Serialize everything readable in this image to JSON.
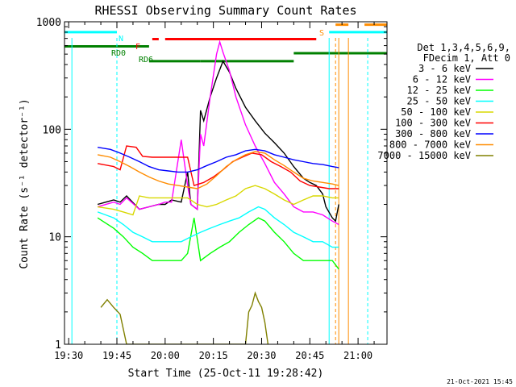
{
  "chart_data": {
    "type": "line",
    "title": "RHESSI Observing Summary Count Rates",
    "xlabel": "Start Time (25-Oct-11 19:28:42)",
    "ylabel": "Count Rate (s⁻¹ detector⁻¹)",
    "xlim": [
      "19:28:42",
      "21:09:00"
    ],
    "ylim": [
      1,
      1000
    ],
    "yscale": "log",
    "x_ticks": [
      "19:30",
      "19:45",
      "20:00",
      "20:15",
      "20:30",
      "20:45",
      "21:00"
    ],
    "y_ticks": [
      "1",
      "10",
      "100",
      "1000"
    ],
    "timestamp": "21-Oct-2021 15:45",
    "legend_header": [
      "Det 1,3,4,5,6,9,",
      "FDecim 1, Att 0"
    ],
    "legend_position": "right",
    "series": [
      {
        "name": "3 - 6 keV",
        "color": "#000000",
        "points": [
          [
            "19:39",
            20
          ],
          [
            "19:44",
            22
          ],
          [
            "19:46",
            21
          ],
          [
            "19:48",
            24
          ],
          [
            "19:52",
            18
          ],
          [
            "19:55",
            19
          ],
          [
            "19:58",
            20
          ],
          [
            "20:00",
            20
          ],
          [
            "20:02",
            22
          ],
          [
            "20:05",
            21
          ],
          [
            "20:07",
            40
          ],
          [
            "20:08",
            20
          ],
          [
            "20:10",
            18
          ],
          [
            "20:11",
            150
          ],
          [
            "20:12",
            120
          ],
          [
            "20:14",
            200
          ],
          [
            "20:16",
            300
          ],
          [
            "20:18",
            430
          ],
          [
            "20:20",
            340
          ],
          [
            "20:22",
            240
          ],
          [
            "20:25",
            160
          ],
          [
            "20:28",
            120
          ],
          [
            "20:31",
            92
          ],
          [
            "20:34",
            75
          ],
          [
            "20:37",
            60
          ],
          [
            "20:40",
            45
          ],
          [
            "20:43",
            35
          ],
          [
            "20:45",
            32
          ],
          [
            "20:47",
            30
          ],
          [
            "20:49",
            25
          ],
          [
            "20:50",
            19
          ],
          [
            "20:52",
            15
          ],
          [
            "20:53",
            14
          ],
          [
            "20:54",
            20
          ]
        ]
      },
      {
        "name": "6 - 12 keV",
        "color": "#ff00ff",
        "points": [
          [
            "19:39",
            19
          ],
          [
            "19:44",
            21
          ],
          [
            "19:46",
            20
          ],
          [
            "19:48",
            23
          ],
          [
            "19:52",
            18
          ],
          [
            "19:55",
            19
          ],
          [
            "19:58",
            20
          ],
          [
            "20:00",
            21
          ],
          [
            "20:02",
            21
          ],
          [
            "20:05",
            80
          ],
          [
            "20:07",
            30
          ],
          [
            "20:08",
            20
          ],
          [
            "20:10",
            18
          ],
          [
            "20:11",
            90
          ],
          [
            "20:12",
            70
          ],
          [
            "20:14",
            200
          ],
          [
            "20:16",
            500
          ],
          [
            "20:17",
            650
          ],
          [
            "20:18",
            520
          ],
          [
            "20:20",
            350
          ],
          [
            "20:22",
            200
          ],
          [
            "20:25",
            110
          ],
          [
            "20:28",
            70
          ],
          [
            "20:31",
            48
          ],
          [
            "20:34",
            32
          ],
          [
            "20:37",
            25
          ],
          [
            "20:40",
            19
          ],
          [
            "20:43",
            17
          ],
          [
            "20:46",
            17
          ],
          [
            "20:49",
            16
          ],
          [
            "20:52",
            14
          ],
          [
            "20:54",
            13
          ]
        ]
      },
      {
        "name": "12 - 25 keV",
        "color": "#00ff00",
        "points": [
          [
            "19:39",
            15
          ],
          [
            "19:44",
            12
          ],
          [
            "19:47",
            10
          ],
          [
            "19:50",
            8
          ],
          [
            "19:53",
            7
          ],
          [
            "19:56",
            6
          ],
          [
            "19:59",
            6
          ],
          [
            "20:02",
            6
          ],
          [
            "20:05",
            6
          ],
          [
            "20:07",
            7
          ],
          [
            "20:09",
            15
          ],
          [
            "20:11",
            6
          ],
          [
            "20:14",
            7
          ],
          [
            "20:17",
            8
          ],
          [
            "20:20",
            9
          ],
          [
            "20:23",
            11
          ],
          [
            "20:26",
            13
          ],
          [
            "20:29",
            15
          ],
          [
            "20:31",
            14
          ],
          [
            "20:34",
            11
          ],
          [
            "20:37",
            9
          ],
          [
            "20:40",
            7
          ],
          [
            "20:43",
            6
          ],
          [
            "20:46",
            6
          ],
          [
            "20:49",
            6
          ],
          [
            "20:52",
            6
          ],
          [
            "20:54",
            5
          ]
        ]
      },
      {
        "name": "25 - 50 keV",
        "color": "#00ffff",
        "points": [
          [
            "19:39",
            17
          ],
          [
            "19:44",
            15
          ],
          [
            "19:47",
            13
          ],
          [
            "19:50",
            11
          ],
          [
            "19:53",
            10
          ],
          [
            "19:56",
            9
          ],
          [
            "19:59",
            9
          ],
          [
            "20:02",
            9
          ],
          [
            "20:05",
            9
          ],
          [
            "20:08",
            10
          ],
          [
            "20:11",
            11
          ],
          [
            "20:14",
            12
          ],
          [
            "20:17",
            13
          ],
          [
            "20:20",
            14
          ],
          [
            "20:23",
            15
          ],
          [
            "20:26",
            17
          ],
          [
            "20:29",
            19
          ],
          [
            "20:31",
            18
          ],
          [
            "20:34",
            15
          ],
          [
            "20:37",
            13
          ],
          [
            "20:40",
            11
          ],
          [
            "20:43",
            10
          ],
          [
            "20:46",
            9
          ],
          [
            "20:49",
            9
          ],
          [
            "20:52",
            8
          ],
          [
            "20:54",
            8
          ]
        ]
      },
      {
        "name": "50 - 100 keV",
        "color": "#d8d800",
        "points": [
          [
            "19:39",
            19
          ],
          [
            "19:44",
            18
          ],
          [
            "19:47",
            17
          ],
          [
            "19:50",
            16
          ],
          [
            "19:52",
            24
          ],
          [
            "19:55",
            23
          ],
          [
            "19:58",
            23
          ],
          [
            "20:01",
            23
          ],
          [
            "20:04",
            23
          ],
          [
            "20:07",
            23
          ],
          [
            "20:10",
            20
          ],
          [
            "20:13",
            19
          ],
          [
            "20:16",
            20
          ],
          [
            "20:19",
            22
          ],
          [
            "20:22",
            24
          ],
          [
            "20:25",
            28
          ],
          [
            "20:28",
            30
          ],
          [
            "20:31",
            28
          ],
          [
            "20:34",
            25
          ],
          [
            "20:37",
            22
          ],
          [
            "20:40",
            20
          ],
          [
            "20:43",
            22
          ],
          [
            "20:46",
            24
          ],
          [
            "20:49",
            24
          ],
          [
            "20:52",
            23
          ],
          [
            "20:54",
            23
          ]
        ]
      },
      {
        "name": "100 - 300 keV",
        "color": "#ff0000",
        "points": [
          [
            "19:39",
            48
          ],
          [
            "19:44",
            45
          ],
          [
            "19:46",
            42
          ],
          [
            "19:48",
            70
          ],
          [
            "19:51",
            68
          ],
          [
            "19:53",
            56
          ],
          [
            "19:56",
            55
          ],
          [
            "19:59",
            55
          ],
          [
            "20:02",
            55
          ],
          [
            "20:05",
            55
          ],
          [
            "20:07",
            55
          ],
          [
            "20:09",
            30
          ],
          [
            "20:12",
            32
          ],
          [
            "20:15",
            36
          ],
          [
            "20:18",
            42
          ],
          [
            "20:21",
            50
          ],
          [
            "20:24",
            55
          ],
          [
            "20:27",
            60
          ],
          [
            "20:30",
            58
          ],
          [
            "20:33",
            50
          ],
          [
            "20:36",
            45
          ],
          [
            "20:39",
            40
          ],
          [
            "20:42",
            33
          ],
          [
            "20:45",
            30
          ],
          [
            "20:48",
            29
          ],
          [
            "20:51",
            28
          ],
          [
            "20:54",
            28
          ]
        ]
      },
      {
        "name": "300 - 800 keV",
        "color": "#0000ff",
        "points": [
          [
            "19:39",
            68
          ],
          [
            "19:43",
            65
          ],
          [
            "19:46",
            60
          ],
          [
            "19:49",
            55
          ],
          [
            "19:52",
            50
          ],
          [
            "19:55",
            45
          ],
          [
            "19:58",
            42
          ],
          [
            "20:01",
            41
          ],
          [
            "20:04",
            40
          ],
          [
            "20:07",
            40
          ],
          [
            "20:10",
            42
          ],
          [
            "20:13",
            46
          ],
          [
            "20:16",
            50
          ],
          [
            "20:19",
            55
          ],
          [
            "20:22",
            58
          ],
          [
            "20:25",
            63
          ],
          [
            "20:28",
            65
          ],
          [
            "20:31",
            63
          ],
          [
            "20:34",
            58
          ],
          [
            "20:37",
            55
          ],
          [
            "20:40",
            52
          ],
          [
            "20:43",
            50
          ],
          [
            "20:46",
            48
          ],
          [
            "20:49",
            47
          ],
          [
            "20:52",
            45
          ],
          [
            "20:54",
            44
          ]
        ]
      },
      {
        "name": "800 - 7000 keV",
        "color": "#ff8c00",
        "points": [
          [
            "19:39",
            58
          ],
          [
            "19:43",
            55
          ],
          [
            "19:46",
            50
          ],
          [
            "19:49",
            45
          ],
          [
            "19:52",
            40
          ],
          [
            "19:55",
            36
          ],
          [
            "19:58",
            33
          ],
          [
            "20:01",
            31
          ],
          [
            "20:04",
            30
          ],
          [
            "20:07",
            29
          ],
          [
            "20:10",
            28
          ],
          [
            "20:13",
            31
          ],
          [
            "20:16",
            37
          ],
          [
            "20:19",
            45
          ],
          [
            "20:22",
            52
          ],
          [
            "20:25",
            58
          ],
          [
            "20:28",
            62
          ],
          [
            "20:31",
            60
          ],
          [
            "20:34",
            52
          ],
          [
            "20:37",
            46
          ],
          [
            "20:40",
            40
          ],
          [
            "20:43",
            35
          ],
          [
            "20:46",
            33
          ],
          [
            "20:49",
            32
          ],
          [
            "20:52",
            31
          ],
          [
            "20:54",
            30
          ]
        ]
      },
      {
        "name": "7000 - 15000 keV",
        "color": "#808000",
        "points": [
          [
            "19:40",
            2.2
          ],
          [
            "19:42",
            2.6
          ],
          [
            "19:44",
            2.2
          ],
          [
            "19:46",
            1.9
          ],
          [
            "19:48",
            1.0
          ],
          [
            "20:25",
            1.0
          ],
          [
            "20:26",
            2.0
          ],
          [
            "20:27",
            2.3
          ],
          [
            "20:28",
            3.0
          ],
          [
            "20:29",
            2.5
          ],
          [
            "20:30",
            2.2
          ],
          [
            "20:31",
            1.6
          ],
          [
            "20:32",
            1.0
          ]
        ]
      }
    ],
    "annotations": [
      {
        "label": "N",
        "color": "#00ffff"
      },
      {
        "label": "F",
        "color": "#ff0000"
      },
      {
        "label": "S",
        "color": "#ff8c00"
      },
      {
        "label": "RD0",
        "color": "#008000"
      },
      {
        "label": "RD6",
        "color": "#008000"
      }
    ],
    "state_bars": [
      {
        "label": "night",
        "color": "#00ffff",
        "level": 800,
        "spans": [
          [
            "19:28:42",
            "19:45"
          ],
          [
            "20:51",
            "21:09"
          ]
        ]
      },
      {
        "label": "flare",
        "color": "#ff0000",
        "level": 690,
        "spans": [
          [
            "19:56",
            "19:58"
          ],
          [
            "20:00",
            "20:47"
          ]
        ]
      },
      {
        "label": "saa",
        "color": "#ff8c00",
        "level": 940,
        "spans": [
          [
            "20:53",
            "20:57"
          ],
          [
            "21:02",
            "21:09"
          ]
        ]
      },
      {
        "label": "decim",
        "color": "#008000",
        "level": 590,
        "spans": [
          [
            "19:28:42",
            "19:55"
          ]
        ]
      },
      {
        "label": "decim2",
        "color": "#008000",
        "level": 430,
        "spans": [
          [
            "19:55",
            "20:11"
          ],
          [
            "20:11",
            "20:40"
          ]
        ]
      },
      {
        "label": "decim3",
        "color": "#008000",
        "level": 510,
        "spans": [
          [
            "20:40",
            "21:09"
          ]
        ]
      }
    ],
    "vlines": [
      {
        "time": "19:31",
        "color": "#00ffff",
        "style": "solid"
      },
      {
        "time": "19:45",
        "color": "#00ffff",
        "style": "dashed"
      },
      {
        "time": "20:51",
        "color": "#00ffff",
        "style": "solid"
      },
      {
        "time": "20:53",
        "color": "#ff8c00",
        "style": "dashed"
      },
      {
        "time": "20:54",
        "color": "#ff8c00",
        "style": "solid"
      },
      {
        "time": "20:57",
        "color": "#ff8c00",
        "style": "solid"
      },
      {
        "time": "21:03",
        "color": "#00ffff",
        "style": "dashed"
      }
    ]
  }
}
